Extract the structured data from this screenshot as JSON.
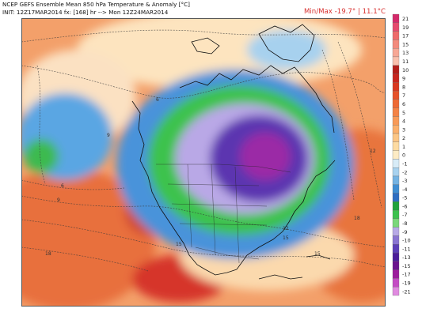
{
  "header": {
    "title": "NCEP GEFS Ensemble Mean 850 hPa Temperature & Anomaly [°C]",
    "init_line": "INIT: 12Z17MAR2014 fx: [168] hr --> Mon 12Z24MAR2014",
    "minmax_label": "Min/Max",
    "min_value": "-19.7°",
    "separator": "|",
    "max_value": "11.1°C"
  },
  "colorbar": {
    "ticks": [
      "21",
      "19",
      "17",
      "15",
      "13",
      "11",
      "10",
      "9",
      "8",
      "7",
      "6",
      "5",
      "4",
      "3",
      "2",
      "1",
      "0",
      "-1",
      "-2",
      "-3",
      "-4",
      "-5",
      "-6",
      "-7",
      "-8",
      "-9",
      "-10",
      "-11",
      "-13",
      "-15",
      "-17",
      "-19",
      "-21"
    ],
    "colors": [
      "#d42a6a",
      "#e54a6e",
      "#ee6a6a",
      "#f38a7c",
      "#f7a795",
      "#f9c0ad",
      "#b41f1a",
      "#c8261e",
      "#d9381f",
      "#e6522a",
      "#ee6a35",
      "#f48346",
      "#f89a58",
      "#fbb06c",
      "#fcc685",
      "#fddba2",
      "#fdebc4",
      "#d8ecf7",
      "#a8d2ef",
      "#74b3e3",
      "#3f8ed3",
      "#2e6ec2",
      "#1fa33c",
      "#3cc24e",
      "#7ad87a",
      "#b7a9e6",
      "#8a75d2",
      "#5c3fb8",
      "#4a1d9a",
      "#6a148e",
      "#9c1c9c",
      "#c44bc4",
      "#e08ae0"
    ]
  },
  "map": {
    "contour_labels": [
      "9",
      "6",
      "6",
      "9",
      "12",
      "15",
      "15",
      "18",
      "12",
      "15",
      "18"
    ],
    "colors": {
      "ocean_warm": "#f5a36c",
      "ocean_hot": "#e66a3a",
      "pale": "#fde6c0",
      "cold_blue": "#4d9ee0",
      "green": "#3fc24e",
      "lavender": "#c2b2ec",
      "purple": "#5b34b0",
      "magenta": "#9b2aa6"
    }
  }
}
